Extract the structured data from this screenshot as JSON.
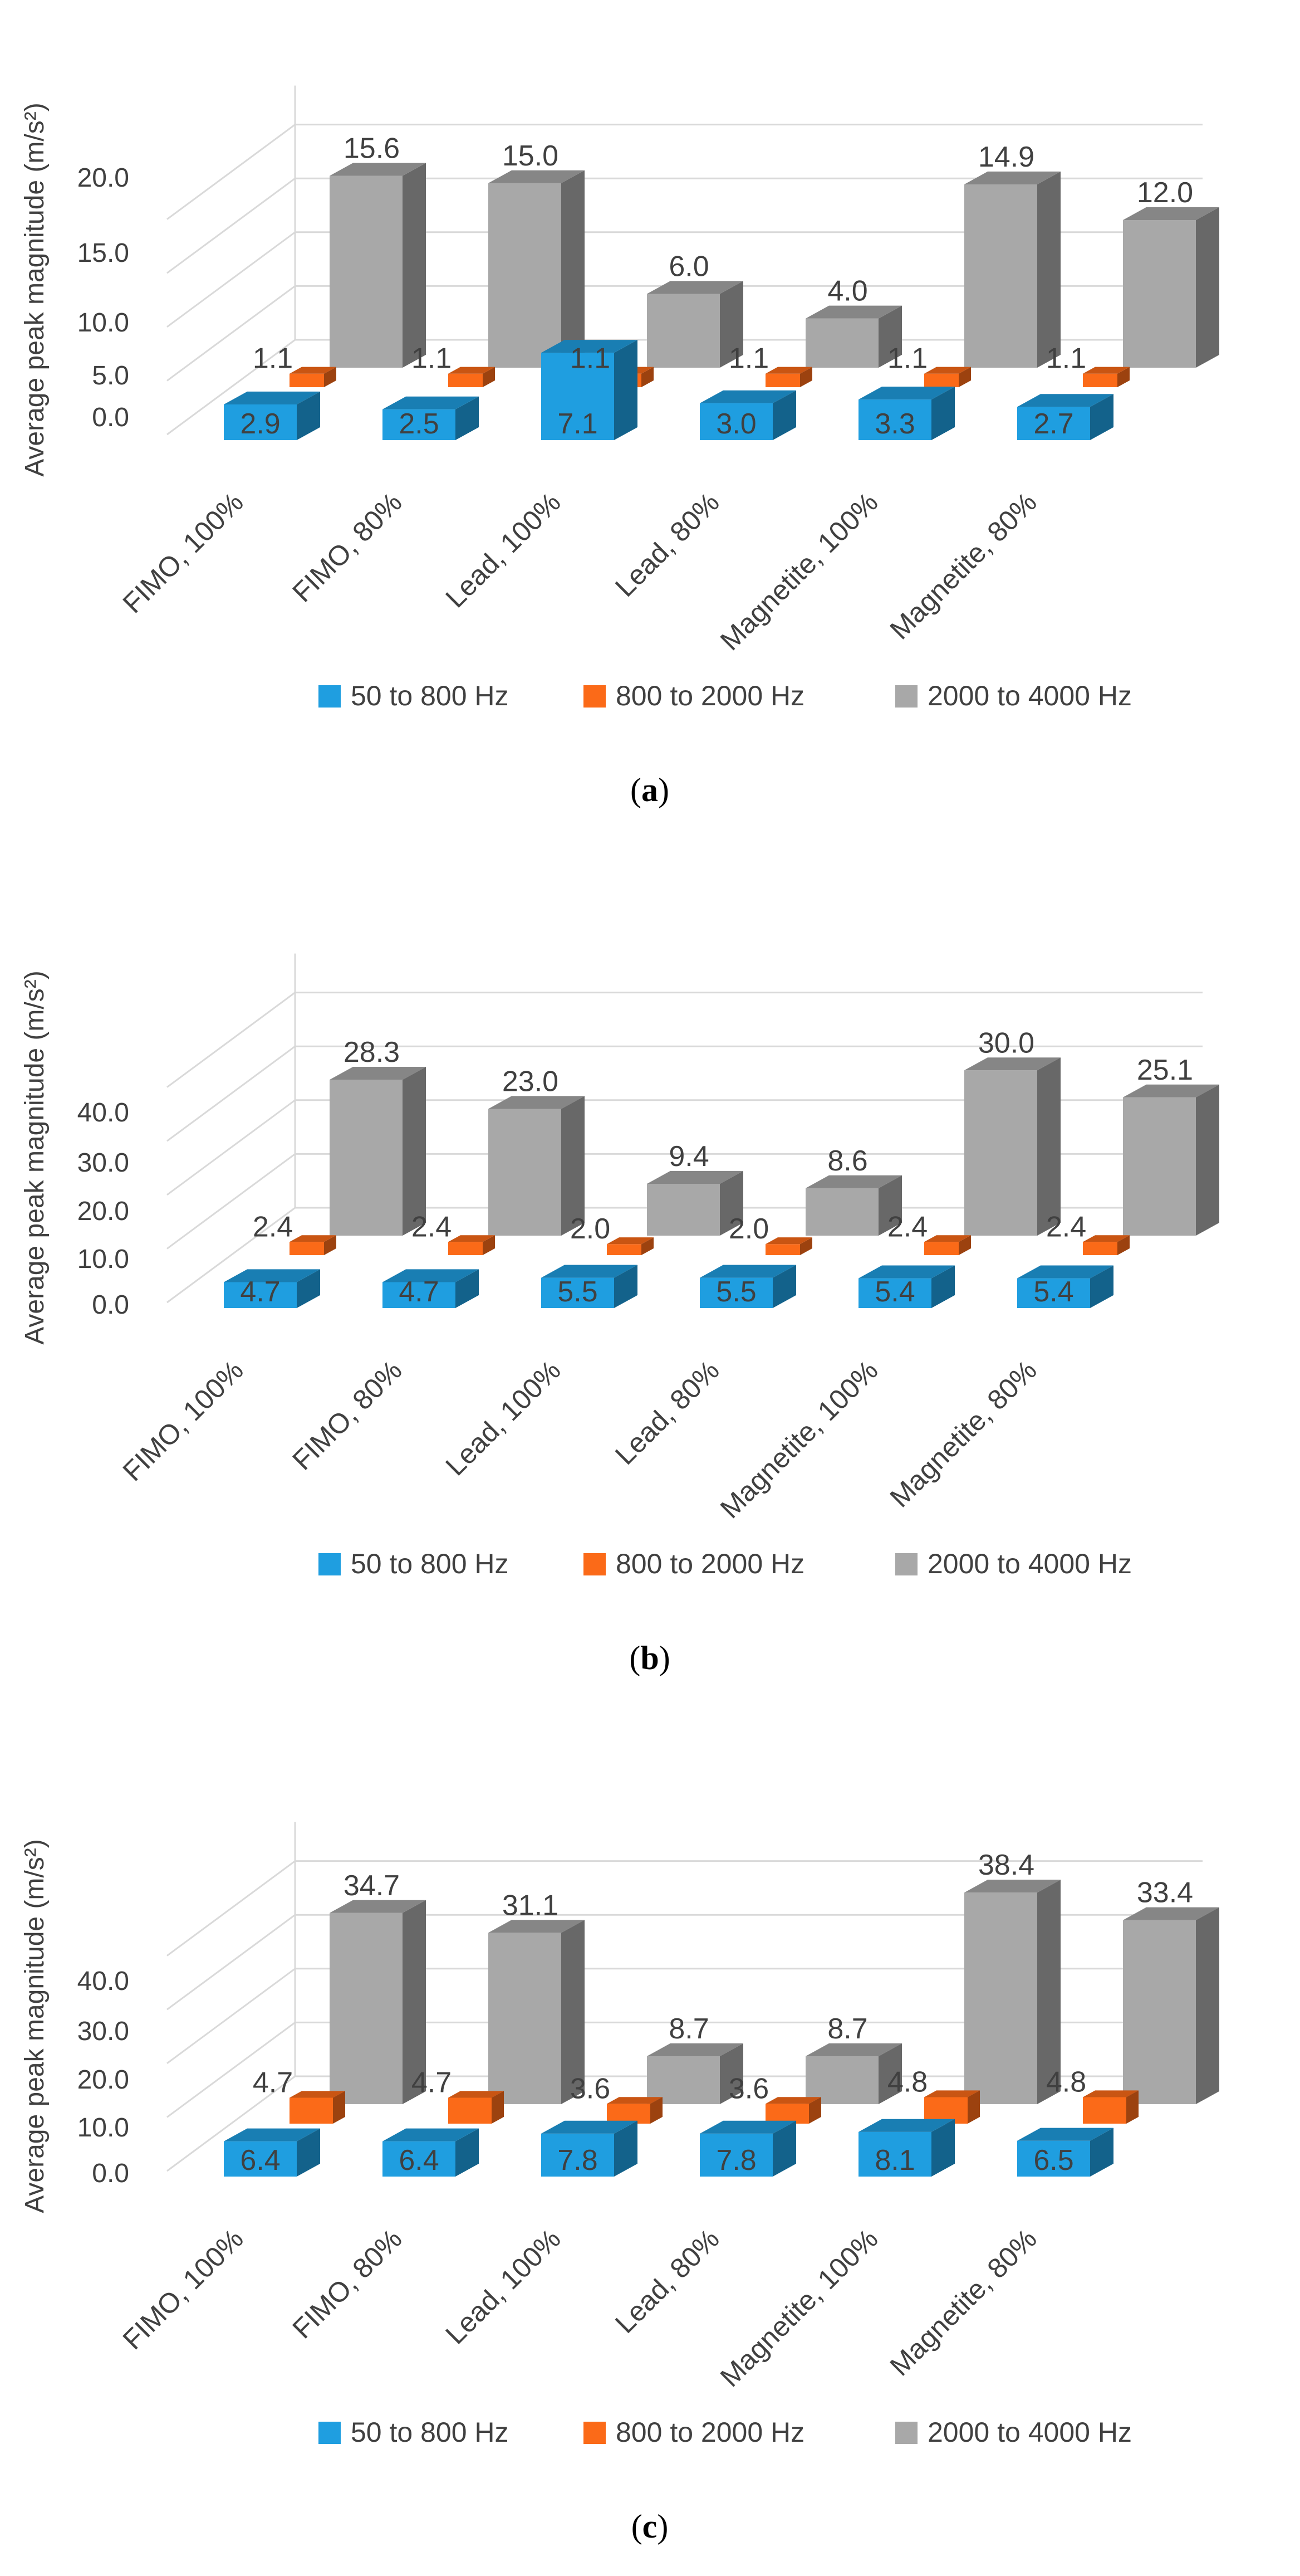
{
  "colors": {
    "blue": "#1f9ee0",
    "orange": "#fb6a18",
    "gray": "#a8a8a8",
    "grid": "#d9d9d9",
    "text": "#404040"
  },
  "chart_data": [
    {
      "type": "bar",
      "panel_label": "a",
      "caption_open": "(",
      "caption_close": ")",
      "ylabel": "Average peak magnitude (m/s²)",
      "yticks": [
        "0.0",
        "5.0",
        "10.0",
        "15.0",
        "20.0"
      ],
      "ylim": [
        0,
        20
      ],
      "categories": [
        "FIMO, 100%",
        "FIMO, 80%",
        "Lead, 100%",
        "Lead, 80%",
        "Magnetite, 100%",
        "Magnetite, 80%"
      ],
      "series": [
        {
          "name": "50 to 800 Hz",
          "values": [
            2.9,
            2.5,
            7.1,
            3.0,
            3.3,
            2.7
          ],
          "labels": [
            "2.9",
            "2.5",
            "7.1",
            "3.0",
            "3.3",
            "2.7"
          ]
        },
        {
          "name": "800 to 2000 Hz",
          "values": [
            1.1,
            1.1,
            1.1,
            1.1,
            1.1,
            1.1
          ],
          "labels": [
            "1.1",
            "1.1",
            "1.1",
            "1.1",
            "1.1",
            "1.1"
          ]
        },
        {
          "name": "2000 to 4000 Hz",
          "values": [
            15.6,
            15.0,
            6.0,
            4.0,
            14.9,
            12.0
          ],
          "labels": [
            "15.6",
            "15.0",
            "6.0",
            "4.0",
            "14.9",
            "12.0"
          ]
        }
      ]
    },
    {
      "type": "bar",
      "panel_label": "b",
      "caption_open": "(",
      "caption_close": ")",
      "ylabel": "Average peak magnitude (m/s²)",
      "yticks": [
        "0.0",
        "10.0",
        "20.0",
        "30.0",
        "40.0"
      ],
      "ylim": [
        0,
        40
      ],
      "categories": [
        "FIMO, 100%",
        "FIMO, 80%",
        "Lead, 100%",
        "Lead, 80%",
        "Magnetite, 100%",
        "Magnetite, 80%"
      ],
      "series": [
        {
          "name": "50 to 800 Hz",
          "values": [
            4.7,
            4.7,
            5.5,
            5.5,
            5.4,
            5.4
          ],
          "labels": [
            "4.7",
            "4.7",
            "5.5",
            "5.5",
            "5.4",
            "5.4"
          ]
        },
        {
          "name": "800 to 2000 Hz",
          "values": [
            2.4,
            2.4,
            2.0,
            2.0,
            2.4,
            2.4
          ],
          "labels": [
            "2.4",
            "2.4",
            "2.0",
            "2.0",
            "2.4",
            "2.4"
          ]
        },
        {
          "name": "2000 to 4000 Hz",
          "values": [
            28.3,
            23.0,
            9.4,
            8.6,
            30.0,
            25.1
          ],
          "labels": [
            "28.3",
            "23.0",
            "9.4",
            "8.6",
            "30.0",
            "25.1"
          ]
        }
      ]
    },
    {
      "type": "bar",
      "panel_label": "c",
      "caption_open": "(",
      "caption_close": ")",
      "ylabel": "Average peak magnitude (m/s²)",
      "yticks": [
        "0.0",
        "10.0",
        "20.0",
        "30.0",
        "40.0"
      ],
      "ylim": [
        0,
        40
      ],
      "categories": [
        "FIMO, 100%",
        "FIMO, 80%",
        "Lead, 100%",
        "Lead, 80%",
        "Magnetite, 100%",
        "Magnetite, 80%"
      ],
      "series": [
        {
          "name": "50 to 800 Hz",
          "values": [
            6.4,
            6.4,
            7.8,
            7.8,
            8.1,
            6.5
          ],
          "labels": [
            "6.4",
            "6.4",
            "7.8",
            "7.8",
            "8.1",
            "6.5"
          ]
        },
        {
          "name": "800 to 2000 Hz",
          "values": [
            4.7,
            4.7,
            3.6,
            3.6,
            4.8,
            4.8
          ],
          "labels": [
            "4.7",
            "4.7",
            "3.6",
            "3.6",
            "4.8",
            "4.8"
          ]
        },
        {
          "name": "2000 to 4000 Hz",
          "values": [
            34.7,
            31.1,
            8.7,
            8.7,
            38.4,
            33.4
          ],
          "labels": [
            "34.7",
            "31.1",
            "8.7",
            "8.7",
            "38.4",
            "33.4"
          ]
        }
      ]
    }
  ]
}
